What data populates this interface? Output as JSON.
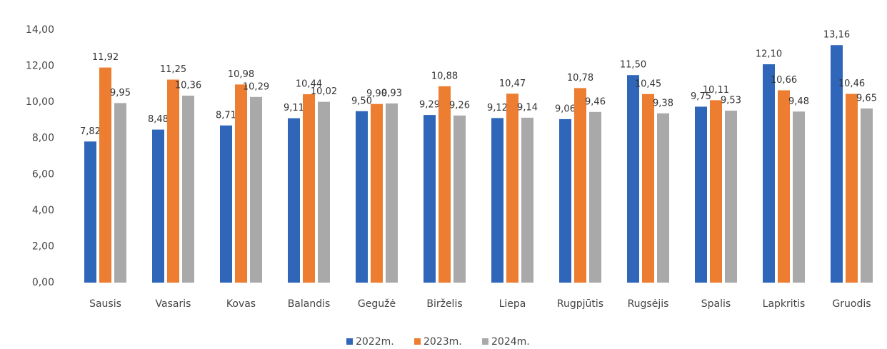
{
  "chart_data": {
    "type": "bar",
    "categories": [
      "Sausis",
      "Vasaris",
      "Kovas",
      "Balandis",
      "Gegužė",
      "Birželis",
      "Liepa",
      "Rugpjūtis",
      "Rugsėjis",
      "Spalis",
      "Lapkritis",
      "Gruodis"
    ],
    "series": [
      {
        "name": "2022m.",
        "color": "#2f66b9",
        "values": [
          7.82,
          8.48,
          8.71,
          9.11,
          9.5,
          9.29,
          9.12,
          9.06,
          11.5,
          9.75,
          12.1,
          13.16
        ],
        "value_labels": [
          "7,82",
          "8,48",
          "8,71",
          "9,11",
          "9,50",
          "9,29",
          "9,12",
          "9,06",
          "11,50",
          "9,75",
          "12,10",
          "13,16"
        ]
      },
      {
        "name": "2023m.",
        "color": "#ed7d31",
        "values": [
          11.92,
          11.25,
          10.98,
          10.44,
          9.9,
          10.88,
          10.47,
          10.78,
          10.45,
          10.11,
          10.66,
          10.46
        ],
        "value_labels": [
          "11,92",
          "11,25",
          "10,98",
          "10,44",
          "9,90",
          "10,88",
          "10,47",
          "10,78",
          "10,45",
          "10,11",
          "10,66",
          "10,46"
        ]
      },
      {
        "name": "2024m.",
        "color": "#a9a9a9",
        "values": [
          9.95,
          10.36,
          10.29,
          10.02,
          9.93,
          9.26,
          9.14,
          9.46,
          9.38,
          9.53,
          9.48,
          9.65
        ],
        "value_labels": [
          "9,95",
          "10,36",
          "10,29",
          "10,02",
          "9,93",
          "9,26",
          "9,14",
          "9,46",
          "9,38",
          "9,53",
          "9,48",
          "9,65"
        ]
      }
    ],
    "ylim": [
      0,
      14
    ],
    "yticks": [
      {
        "value": 0,
        "label": "0,00"
      },
      {
        "value": 2,
        "label": "2,00"
      },
      {
        "value": 4,
        "label": "4,00"
      },
      {
        "value": 6,
        "label": "6,00"
      },
      {
        "value": 8,
        "label": "8,00"
      },
      {
        "value": 10,
        "label": "10,00"
      },
      {
        "value": 12,
        "label": "12,00"
      },
      {
        "value": 14,
        "label": "14,00"
      }
    ],
    "grid": false,
    "legend": "bottom"
  }
}
